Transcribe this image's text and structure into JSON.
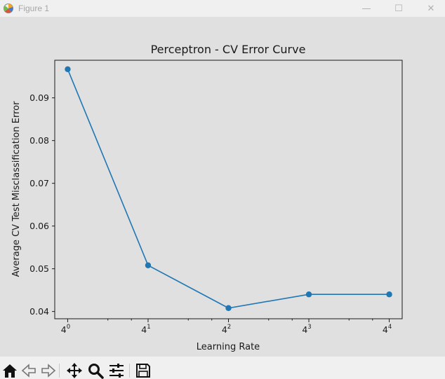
{
  "window": {
    "title": "Figure 1",
    "controls": {
      "minimize": "—",
      "maximize": "☐",
      "close": "✕"
    }
  },
  "colors": {
    "line": "#1f77b4",
    "plot_bg": "#e0e0e0",
    "axes": "#1a1a1a"
  },
  "toolbar": {
    "icons": [
      "home-icon",
      "back-icon",
      "forward-icon",
      "pan-icon",
      "zoom-icon",
      "configure-subplots-icon",
      "save-icon"
    ]
  },
  "chart_data": {
    "type": "line",
    "title": "Perceptron - CV Error Curve",
    "xlabel": "Learning Rate",
    "ylabel": "Average CV Test Misclassification Error",
    "x_scale": "log4",
    "x": [
      1,
      4,
      16,
      64,
      256
    ],
    "x_exponents": [
      "0",
      "1",
      "2",
      "3",
      "4"
    ],
    "x_base": "4",
    "yticks": [
      "0.04",
      "0.05",
      "0.06",
      "0.07",
      "0.08",
      "0.09"
    ],
    "ylim": [
      0.0383,
      0.0988
    ],
    "series": [
      {
        "values": [
          0.0967,
          0.0508,
          0.0408,
          0.044,
          0.044
        ],
        "marker": "circle"
      }
    ],
    "grid": false,
    "legend": "none"
  }
}
